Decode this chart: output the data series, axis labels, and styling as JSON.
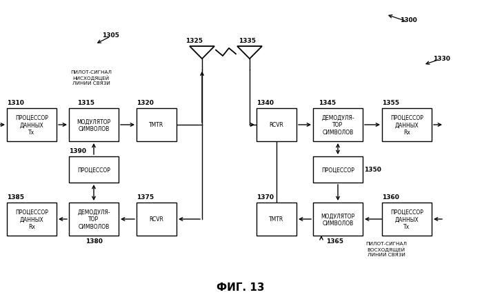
{
  "title": "ФИГ. 13",
  "label_1300": "1300",
  "label_1305": "1305",
  "label_1310": "1310",
  "label_1315": "1315",
  "label_1320": "1320",
  "label_1325": "1325",
  "label_1330": "1330",
  "label_1335": "1335",
  "label_1340": "1340",
  "label_1345": "1345",
  "label_1350": "1350",
  "label_1355": "1355",
  "label_1360": "1360",
  "label_1365": "1365",
  "label_1370": "1370",
  "label_1375": "1375",
  "label_1380": "1380",
  "label_1385": "1385",
  "label_1390": "1390",
  "pilot_down": "ПИЛОТ-СИГНАЛ\nНИСХОДЯЦЕЙ\nЛИНИИ СВЯЗИ",
  "pilot_up": "ПИЛОТ-СИГНАЛ\nВОСХОДЯЩЕЙ\nЛИНИИ СВЯЗИ",
  "box_proc_tx_left": "ПРОЦЕССОР\nДАННЫХ\nTx",
  "box_mod_left": "МОДУЛЯТОР\nСИМВОЛОВ",
  "box_tmtr_left": "TMTR",
  "box_proc_left": "ПРОЦЕССОР",
  "box_demod_left": "ДЕМОДУЛЯ-\nТОР\nСИМВОЛОВ",
  "box_rcvr_left": "RCVR",
  "box_proc_rx_left": "ПРОЦЕССОР\nДАННЫХ\nRx",
  "box_rcvr_right": "RCVR",
  "box_demod_right": "ДЕМОДУЛЯ-\nТОР\nСИМВОЛОВ",
  "box_proc_rx_right": "ПРОЦЕССОР\nДАННЫХ\nRx",
  "box_proc_right": "ПРОЦЕССОР",
  "box_tmtr_right": "TMTR",
  "box_mod_right": "МОДУЛЯТОР\nСИМВОЛОВ",
  "box_proc_tx_right": "ПРОЦЕССОР\nДАННЫХ\nTx",
  "bg_color": "#ffffff",
  "font_size": 5.5,
  "font_size_label": 6.5
}
